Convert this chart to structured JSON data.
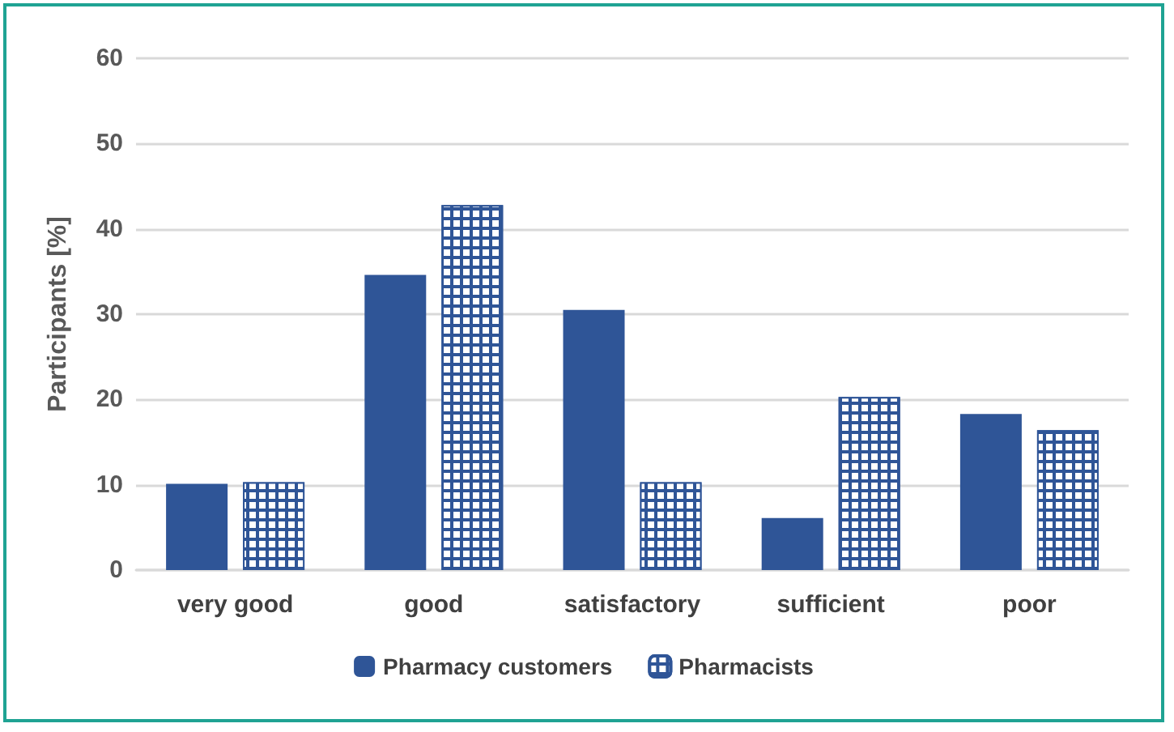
{
  "chart_data": {
    "type": "bar",
    "ylabel": "Participants [%]",
    "categories": [
      "very good",
      "good",
      "satisfactory",
      "sufficient",
      "poor"
    ],
    "series": [
      {
        "name": "Pharmacy customers",
        "color": "#2f5597",
        "values": [
          10.1,
          34.6,
          30.5,
          6.1,
          18.3
        ]
      },
      {
        "name": "Pharmacists",
        "color": "#2f5597",
        "values": [
          10.3,
          42.8,
          10.3,
          20.3,
          16.4
        ]
      }
    ],
    "ylim": [
      0,
      60
    ],
    "yticks": [
      0,
      10,
      20,
      30,
      40,
      50,
      60
    ],
    "grid": "y",
    "legend": "bottom"
  }
}
